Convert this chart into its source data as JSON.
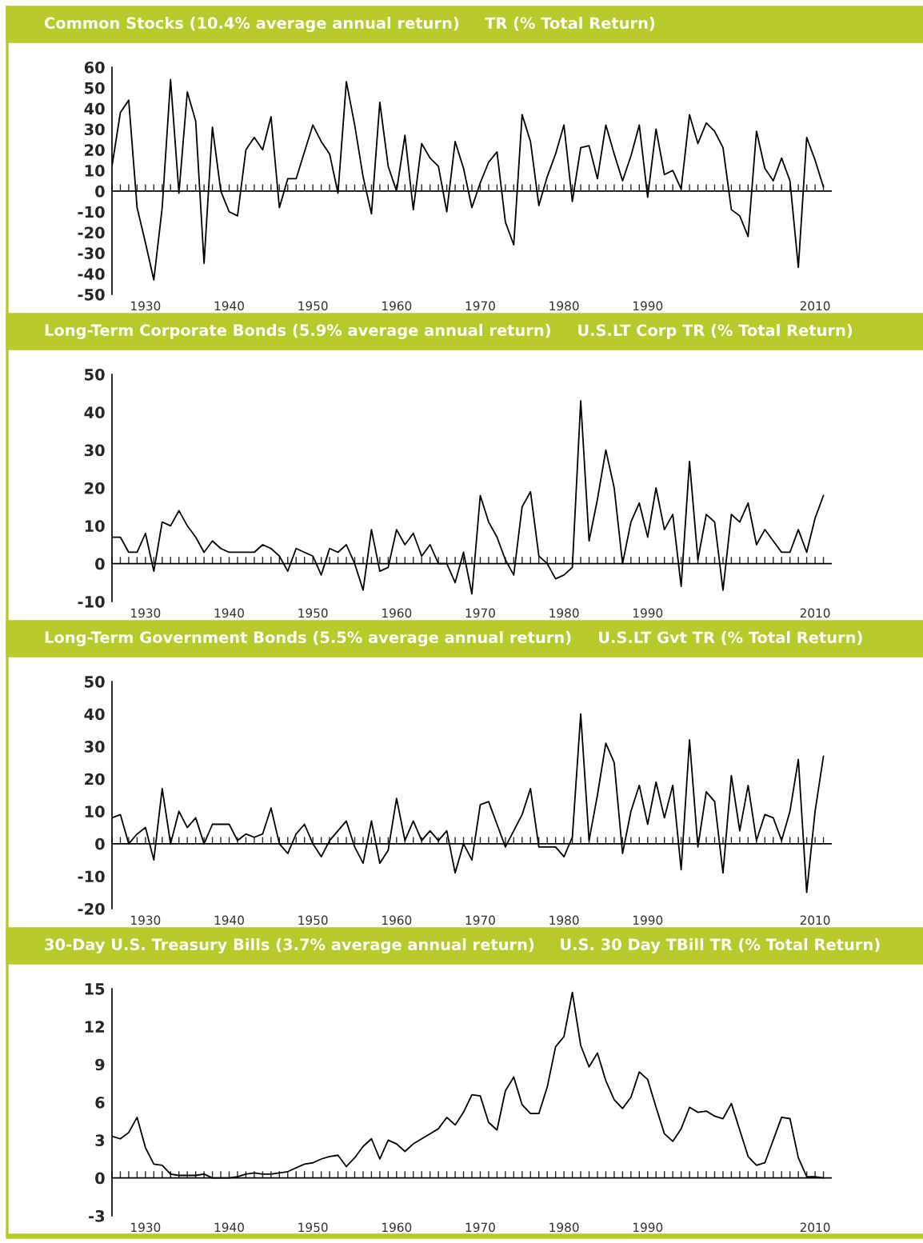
{
  "chart_data": [
    {
      "type": "line",
      "title": "Common Stocks (10.4% average annual return)",
      "subtitle": "TR (% Total Return)",
      "color": "#000000",
      "grid": false,
      "x": [
        1926,
        1927,
        1928,
        1929,
        1930,
        1931,
        1932,
        1933,
        1934,
        1935,
        1936,
        1937,
        1938,
        1939,
        1940,
        1941,
        1942,
        1943,
        1944,
        1945,
        1946,
        1947,
        1948,
        1949,
        1950,
        1951,
        1952,
        1953,
        1954,
        1955,
        1956,
        1957,
        1958,
        1959,
        1960,
        1961,
        1962,
        1963,
        1964,
        1965,
        1966,
        1967,
        1968,
        1969,
        1970,
        1971,
        1972,
        1973,
        1974,
        1975,
        1976,
        1977,
        1978,
        1979,
        1980,
        1981,
        1982,
        1983,
        1984,
        1985,
        1986,
        1987,
        1988,
        1989,
        1990,
        1991,
        1992,
        1993,
        1994,
        1995,
        1996,
        1997,
        1998,
        1999,
        2000,
        2001,
        2002,
        2003,
        2004,
        2005,
        2006,
        2007,
        2008,
        2009,
        2010,
        2011
      ],
      "values": [
        12,
        38,
        44,
        -8,
        -25,
        -43,
        -8,
        54,
        -1,
        48,
        34,
        -35,
        31,
        0,
        -10,
        -12,
        20,
        26,
        20,
        36,
        -8,
        6,
        6,
        19,
        32,
        24,
        18,
        -1,
        53,
        32,
        7,
        -11,
        43,
        12,
        0,
        27,
        -9,
        23,
        16,
        12,
        -10,
        24,
        11,
        -8,
        4,
        14,
        19,
        -15,
        -26,
        37,
        24,
        -7,
        7,
        18,
        32,
        -5,
        21,
        22,
        6,
        32,
        18,
        5,
        17,
        32,
        -3,
        30,
        8,
        10,
        1,
        37,
        23,
        33,
        29,
        21,
        -9,
        -12,
        -22,
        29,
        11,
        5,
        16,
        5,
        -37,
        26,
        15,
        2
      ],
      "xlim": [
        1926,
        2012
      ],
      "ylim": [
        -50,
        60
      ],
      "yticks": [
        -50,
        -40,
        -30,
        -20,
        -10,
        0,
        10,
        20,
        30,
        40,
        50,
        60
      ],
      "xticks": [
        1930,
        1940,
        1950,
        1960,
        1970,
        1980,
        1990,
        2010
      ],
      "ref_lines": [
        {
          "axis": "y",
          "value": 0
        }
      ]
    },
    {
      "type": "line",
      "title": "Long-Term Corporate Bonds (5.9% average annual return)",
      "subtitle": "U.S.LT Corp TR (% Total Return)",
      "color": "#000000",
      "grid": false,
      "x": [
        1926,
        1927,
        1928,
        1929,
        1930,
        1931,
        1932,
        1933,
        1934,
        1935,
        1936,
        1937,
        1938,
        1939,
        1940,
        1941,
        1942,
        1943,
        1944,
        1945,
        1946,
        1947,
        1948,
        1949,
        1950,
        1951,
        1952,
        1953,
        1954,
        1955,
        1956,
        1957,
        1958,
        1959,
        1960,
        1961,
        1962,
        1963,
        1964,
        1965,
        1966,
        1967,
        1968,
        1969,
        1970,
        1971,
        1972,
        1973,
        1974,
        1975,
        1976,
        1977,
        1978,
        1979,
        1980,
        1981,
        1982,
        1983,
        1984,
        1985,
        1986,
        1987,
        1988,
        1989,
        1990,
        1991,
        1992,
        1993,
        1994,
        1995,
        1996,
        1997,
        1998,
        1999,
        2000,
        2001,
        2002,
        2003,
        2004,
        2005,
        2006,
        2007,
        2008,
        2009,
        2010,
        2011
      ],
      "values": [
        7,
        7,
        3,
        3,
        8,
        -2,
        11,
        10,
        14,
        10,
        7,
        3,
        6,
        4,
        3,
        3,
        3,
        3,
        5,
        4,
        2,
        -2,
        4,
        3,
        2,
        -3,
        4,
        3,
        5,
        0,
        -7,
        9,
        -2,
        -1,
        9,
        5,
        8,
        2,
        5,
        0,
        0,
        -5,
        3,
        -8,
        18,
        11,
        7,
        1,
        -3,
        15,
        19,
        2,
        0,
        -4,
        -3,
        -1,
        43,
        6,
        17,
        30,
        20,
        0,
        11,
        16,
        7,
        20,
        9,
        13,
        -6,
        27,
        1,
        13,
        11,
        -7,
        13,
        11,
        16,
        5,
        9,
        6,
        3,
        3,
        9,
        3,
        12,
        18
      ],
      "xlim": [
        1926,
        2012
      ],
      "ylim": [
        -10,
        50
      ],
      "yticks": [
        -10,
        0,
        10,
        20,
        30,
        40,
        50
      ],
      "xticks": [
        1930,
        1940,
        1950,
        1960,
        1970,
        1980,
        1990,
        2010
      ],
      "ref_lines": [
        {
          "axis": "y",
          "value": 0
        }
      ]
    },
    {
      "type": "line",
      "title": "Long-Term Government Bonds (5.5% average annual return)",
      "subtitle": "U.S.LT Gvt TR (% Total Return)",
      "color": "#000000",
      "grid": false,
      "x": [
        1926,
        1927,
        1928,
        1929,
        1930,
        1931,
        1932,
        1933,
        1934,
        1935,
        1936,
        1937,
        1938,
        1939,
        1940,
        1941,
        1942,
        1943,
        1944,
        1945,
        1946,
        1947,
        1948,
        1949,
        1950,
        1951,
        1952,
        1953,
        1954,
        1955,
        1956,
        1957,
        1958,
        1959,
        1960,
        1961,
        1962,
        1963,
        1964,
        1965,
        1966,
        1967,
        1968,
        1969,
        1970,
        1971,
        1972,
        1973,
        1974,
        1975,
        1976,
        1977,
        1978,
        1979,
        1980,
        1981,
        1982,
        1983,
        1984,
        1985,
        1986,
        1987,
        1988,
        1989,
        1990,
        1991,
        1992,
        1993,
        1994,
        1995,
        1996,
        1997,
        1998,
        1999,
        2000,
        2001,
        2002,
        2003,
        2004,
        2005,
        2006,
        2007,
        2008,
        2009,
        2010,
        2011
      ],
      "values": [
        8,
        9,
        0,
        3,
        5,
        -5,
        17,
        0,
        10,
        5,
        8,
        0,
        6,
        6,
        6,
        1,
        3,
        2,
        3,
        11,
        0,
        -3,
        3,
        6,
        0,
        -4,
        1,
        4,
        7,
        -1,
        -6,
        7,
        -6,
        -2,
        14,
        1,
        7,
        1,
        4,
        1,
        4,
        -9,
        0,
        -5,
        12,
        13,
        6,
        -1,
        4,
        9,
        17,
        -1,
        -1,
        -1,
        -4,
        2,
        40,
        1,
        15,
        31,
        25,
        -3,
        10,
        18,
        6,
        19,
        8,
        18,
        -8,
        32,
        -1,
        16,
        13,
        -9,
        21,
        4,
        18,
        1,
        9,
        8,
        1,
        10,
        26,
        -15,
        10,
        27
      ],
      "xlim": [
        1926,
        2012
      ],
      "ylim": [
        -20,
        50
      ],
      "yticks": [
        -20,
        -10,
        0,
        10,
        20,
        30,
        40,
        50
      ],
      "xticks": [
        1930,
        1940,
        1950,
        1960,
        1970,
        1980,
        1990,
        2010
      ],
      "ref_lines": [
        {
          "axis": "y",
          "value": 0
        }
      ]
    },
    {
      "type": "line",
      "title": "30-Day U.S. Treasury Bills (3.7% average annual return)",
      "subtitle": "U.S. 30 Day TBill TR (% Total Return)",
      "color": "#000000",
      "grid": false,
      "x": [
        1926,
        1927,
        1928,
        1929,
        1930,
        1931,
        1932,
        1933,
        1934,
        1935,
        1936,
        1937,
        1938,
        1939,
        1940,
        1941,
        1942,
        1943,
        1944,
        1945,
        1946,
        1947,
        1948,
        1949,
        1950,
        1951,
        1952,
        1953,
        1954,
        1955,
        1956,
        1957,
        1958,
        1959,
        1960,
        1961,
        1962,
        1963,
        1964,
        1965,
        1966,
        1967,
        1968,
        1969,
        1970,
        1971,
        1972,
        1973,
        1974,
        1975,
        1976,
        1977,
        1978,
        1979,
        1980,
        1981,
        1982,
        1983,
        1984,
        1985,
        1986,
        1987,
        1988,
        1989,
        1990,
        1991,
        1992,
        1993,
        1994,
        1995,
        1996,
        1997,
        1998,
        1999,
        2000,
        2001,
        2002,
        2003,
        2004,
        2005,
        2006,
        2007,
        2008,
        2009,
        2010,
        2011
      ],
      "values": [
        3.3,
        3.1,
        3.6,
        4.8,
        2.4,
        1.1,
        1.0,
        0.3,
        0.2,
        0.2,
        0.2,
        0.3,
        0.0,
        0.0,
        0.0,
        0.1,
        0.3,
        0.4,
        0.3,
        0.3,
        0.4,
        0.5,
        0.8,
        1.1,
        1.2,
        1.5,
        1.7,
        1.8,
        0.9,
        1.6,
        2.5,
        3.1,
        1.5,
        3.0,
        2.7,
        2.1,
        2.7,
        3.1,
        3.5,
        3.9,
        4.8,
        4.2,
        5.2,
        6.6,
        6.5,
        4.4,
        3.8,
        6.9,
        8.0,
        5.8,
        5.1,
        5.1,
        7.2,
        10.4,
        11.2,
        14.7,
        10.5,
        8.8,
        9.9,
        7.7,
        6.2,
        5.5,
        6.4,
        8.4,
        7.8,
        5.6,
        3.5,
        2.9,
        3.9,
        5.6,
        5.2,
        5.3,
        4.9,
        4.7,
        5.9,
        3.8,
        1.7,
        1.0,
        1.2,
        3.0,
        4.8,
        4.7,
        1.6,
        0.1,
        0.1,
        0.0
      ],
      "xlim": [
        1926,
        2012
      ],
      "ylim": [
        -3,
        15
      ],
      "yticks": [
        -3,
        0,
        3,
        6,
        9,
        12,
        15
      ],
      "xticks": [
        1930,
        1940,
        1950,
        1960,
        1970,
        1980,
        1990,
        2010
      ],
      "ref_lines": [
        {
          "axis": "y",
          "value": 0
        }
      ]
    }
  ]
}
